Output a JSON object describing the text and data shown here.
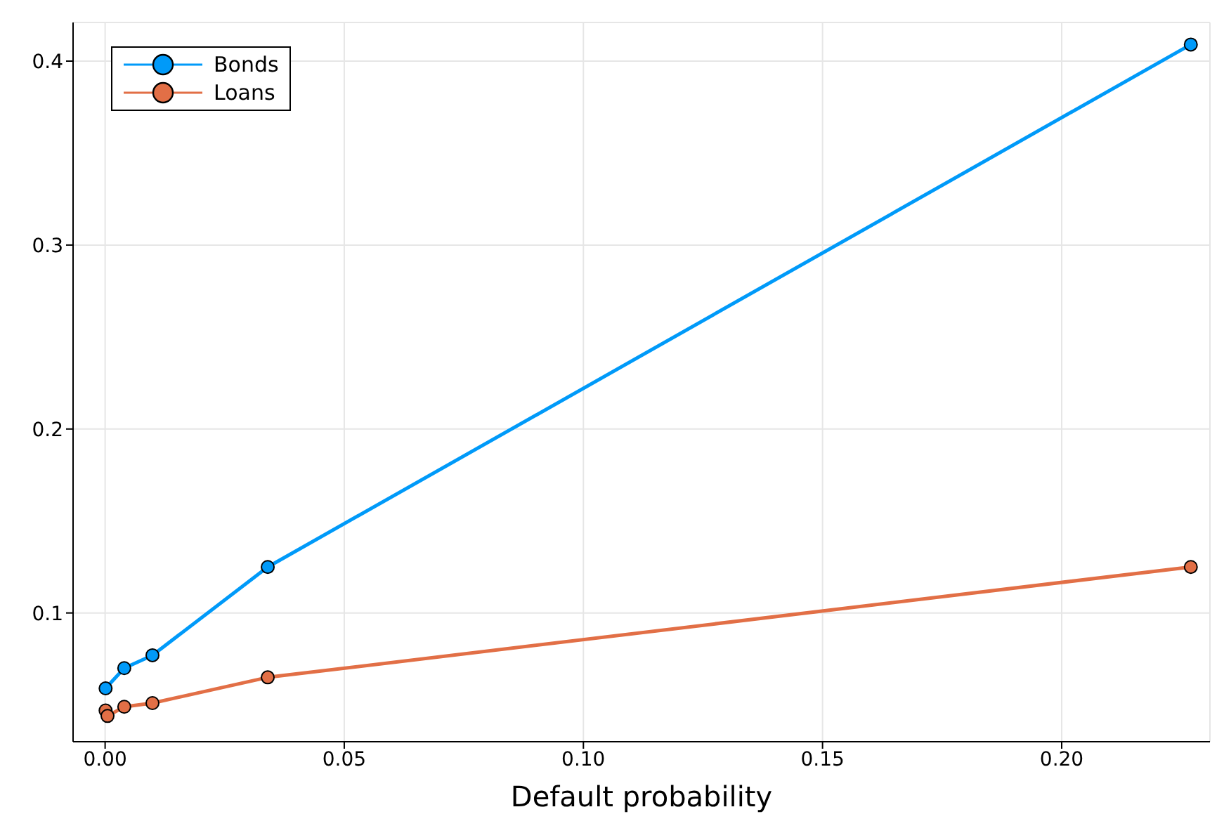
{
  "chart_data": {
    "type": "line",
    "xlabel": "Default probability",
    "marker": "circle",
    "grid": true,
    "legend": "top left",
    "xlim": [
      -0.0067,
      0.231
    ],
    "xticks": [
      {
        "value": 0,
        "label": "0.00"
      },
      {
        "value": 0.05,
        "label": "0.05"
      },
      {
        "value": 0.1,
        "label": "0.10"
      },
      {
        "value": 0.15,
        "label": "0.15"
      },
      {
        "value": 0.2,
        "label": "0.20"
      }
    ],
    "ylim": [
      0.03,
      0.421
    ],
    "yticks": [
      0.1,
      0.2,
      0.3,
      0.4
    ],
    "series": [
      {
        "name": "Bonds",
        "color": "#009af9",
        "x": [
          0.0001,
          0.004,
          0.0099,
          0.034,
          0.227
        ],
        "values": [
          0.059,
          0.07,
          0.077,
          0.125,
          0.409
        ]
      },
      {
        "name": "Loans",
        "color": "#e26f46",
        "x": [
          0.0001,
          0.0005,
          0.004,
          0.0099,
          0.034,
          0.227
        ],
        "values": [
          0.047,
          0.044,
          0.049,
          0.051,
          0.065,
          0.125
        ]
      }
    ]
  }
}
